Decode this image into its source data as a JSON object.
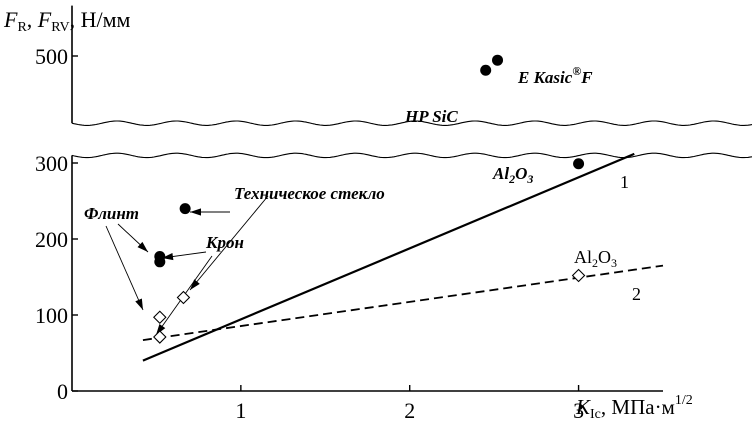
{
  "chart_data": {
    "type": "scatter",
    "ylabel": {
      "f1": "F",
      "f1_sub": "R",
      "sep": ", ",
      "f2": "F",
      "f2_sub": "RV",
      "unit": ", Н/мм"
    },
    "xlabel": {
      "k": "K",
      "k_sub": "Ic",
      "unit": ", МПа·м",
      "unit_sup": "1/2"
    },
    "xlim": [
      0,
      3.5
    ],
    "ylim_lower": [
      0,
      310
    ],
    "ylim_upper": [
      420,
      560
    ],
    "axis_break": "between 310 and 420 N/mm (wavy break lines)",
    "x_ticks": [
      {
        "value": 1,
        "label": "1"
      },
      {
        "value": 2,
        "label": "2"
      },
      {
        "value": 3,
        "label": "3"
      }
    ],
    "y_ticks": [
      {
        "value": 0,
        "label": "0",
        "panel": "lower"
      },
      {
        "value": 100,
        "label": "100",
        "panel": "lower"
      },
      {
        "value": 200,
        "label": "200",
        "panel": "lower"
      },
      {
        "value": 300,
        "label": "300",
        "panel": "lower"
      },
      {
        "value": 500,
        "label": "500",
        "panel": "upper"
      }
    ],
    "filled_points": [
      {
        "x": 0.67,
        "y": 240,
        "panel": "lower"
      },
      {
        "x": 0.52,
        "y": 177,
        "panel": "lower"
      },
      {
        "x": 0.52,
        "y": 170,
        "panel": "lower"
      },
      {
        "x": 3.0,
        "y": 299,
        "panel": "lower"
      },
      {
        "x": 2.45,
        "y": 483,
        "panel": "upper"
      },
      {
        "x": 2.52,
        "y": 495,
        "panel": "upper"
      }
    ],
    "open_points": [
      {
        "x": 0.52,
        "y": 97
      },
      {
        "x": 0.52,
        "y": 71
      },
      {
        "x": 0.66,
        "y": 123
      },
      {
        "x": 3.0,
        "y": 152
      }
    ],
    "lines": [
      {
        "label": "1",
        "style": "solid",
        "x": [
          0.42,
          3.33
        ],
        "y": [
          40,
          312
        ]
      },
      {
        "label": "2",
        "style": "dashed",
        "x": [
          0.42,
          3.5
        ],
        "y": [
          67,
          165
        ]
      }
    ],
    "annotations": {
      "tech_glass": "Техническое стекло",
      "flint": "Флинт",
      "kron": "Крон",
      "al2o3_italic": {
        "base": "Al",
        "sub1": "2",
        "mid": "O",
        "sub2": "3"
      },
      "al2o3_plain": {
        "base": "Al",
        "sub1": "2",
        "mid": "O",
        "sub2": "3"
      },
      "hp_sic": "HP SiC",
      "ekasic": {
        "pre": "E Kasic",
        "sup": "®",
        "post": "F"
      }
    }
  }
}
